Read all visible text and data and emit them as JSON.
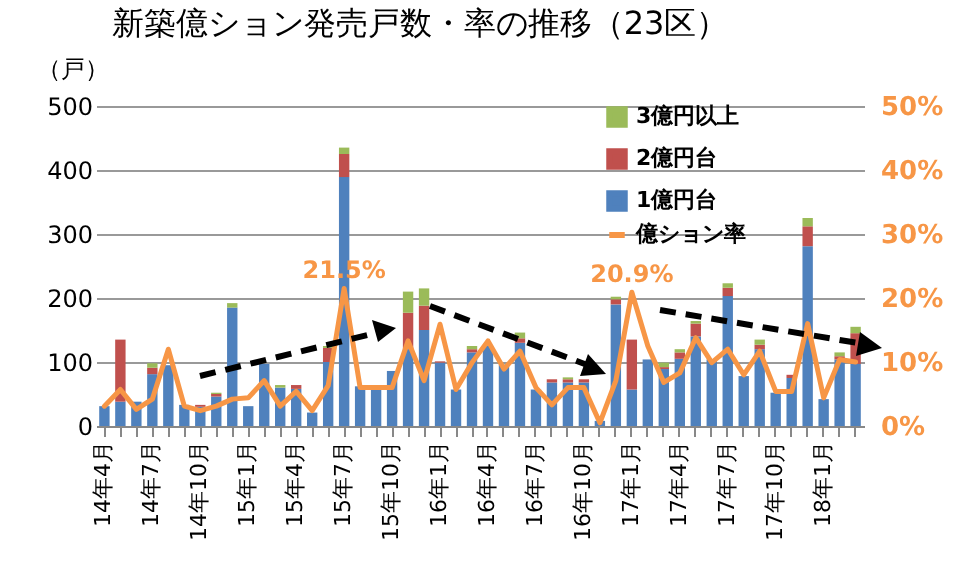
{
  "chart_data": {
    "type": "bar",
    "stacked": true,
    "title": "新築億ション発売戸数・率の推移（23区）",
    "ylabel": "（戸）",
    "categories": [
      "14年4月",
      null,
      null,
      "14年7月",
      null,
      null,
      "14年10月",
      null,
      null,
      "15年1月",
      null,
      null,
      "15年4月",
      null,
      null,
      "15年7月",
      null,
      null,
      "15年10月",
      null,
      null,
      "16年1月",
      null,
      null,
      "16年4月",
      null,
      null,
      "16年7月",
      null,
      null,
      "16年10月",
      null,
      null,
      "17年1月",
      null,
      null,
      "17年4月",
      null,
      null,
      "17年7月",
      null,
      null,
      "17年10月",
      null,
      null,
      "18年1月",
      null,
      null
    ],
    "series": [
      {
        "name": "1億円台",
        "color": "#4f81bd",
        "values": [
          31,
          38,
          38,
          81,
          95,
          33,
          30,
          46,
          185,
          31,
          97,
          60,
          58,
          21,
          100,
          389,
          62,
          60,
          86,
          120,
          150,
          99,
          57,
          115,
          125,
          96,
          130,
          57,
          68,
          68,
          68,
          8,
          190,
          57,
          104,
          89,
          105,
          140,
          104,
          203,
          78,
          120,
          52,
          75,
          281,
          42,
          104,
          97
        ]
      },
      {
        "name": "2億円台",
        "color": "#c0504d",
        "values": [
          0,
          97,
          0,
          10,
          null,
          0,
          3,
          4,
          0,
          0,
          null,
          0,
          6,
          0,
          22,
          36,
          0,
          0,
          0,
          57,
          38,
          2,
          0,
          5,
          null,
          null,
          7,
          0,
          5,
          5,
          5,
          0,
          8,
          78,
          0,
          3,
          10,
          20,
          0,
          13,
          0,
          7,
          0,
          5,
          31,
          0,
          5,
          48
        ]
      },
      {
        "name": "3億円以上",
        "color": "#9bbb59",
        "values": [
          0,
          0,
          0,
          7,
          null,
          0,
          0,
          2,
          7,
          0,
          0,
          4,
          0,
          0,
          3,
          10,
          0,
          0,
          0,
          33,
          27,
          0,
          0,
          5,
          0,
          0,
          9,
          0,
          0,
          3,
          0,
          0,
          4,
          0,
          0,
          7,
          5,
          4,
          0,
          7,
          0,
          8,
          0,
          0,
          13,
          0,
          6,
          10
        ]
      },
      {
        "name": "億ション率",
        "type": "line",
        "axis": "y2",
        "color": "#f79646",
        "value_labels": [
          null,
          null,
          null,
          null,
          null,
          null,
          null,
          null,
          null,
          null,
          null,
          null,
          null,
          null,
          null,
          "21.5%",
          null,
          null,
          null,
          null,
          null,
          null,
          null,
          null,
          null,
          null,
          null,
          null,
          null,
          null,
          null,
          null,
          null,
          "20.9%",
          null,
          null,
          null,
          null,
          null,
          null,
          null,
          null,
          null,
          null,
          null,
          null,
          null,
          null
        ],
        "values": [
          3.1,
          5.7,
          2.6,
          4.2,
          12.0,
          3.1,
          2.4,
          3.1,
          4.2,
          4.4,
          7.1,
          3.1,
          5.4,
          2.4,
          6.3,
          21.5,
          6.0,
          6.0,
          6.0,
          13.3,
          7.1,
          15.9,
          5.7,
          9.9,
          13.3,
          8.9,
          11.7,
          6.0,
          3.3,
          6.0,
          6.0,
          0.5,
          7.1,
          20.9,
          12.5,
          6.8,
          8.3,
          13.8,
          9.9,
          12.0,
          8.0,
          11.7,
          5.4,
          5.4,
          16.0,
          4.4,
          10.4,
          10.0
        ]
      }
    ],
    "ylim": [
      0,
      500
    ],
    "yticks": [
      0,
      100,
      200,
      300,
      400,
      500
    ],
    "y2lim": [
      0,
      50
    ],
    "y2ticks": [
      {
        "value": 0,
        "label": "0%"
      },
      {
        "value": 10,
        "label": "10%"
      },
      {
        "value": 20,
        "label": "20%"
      },
      {
        "value": 30,
        "label": "30%"
      },
      {
        "value": 40,
        "label": "40%"
      },
      {
        "value": 50,
        "label": "50%"
      }
    ],
    "grid": "y",
    "legend": "top right"
  }
}
